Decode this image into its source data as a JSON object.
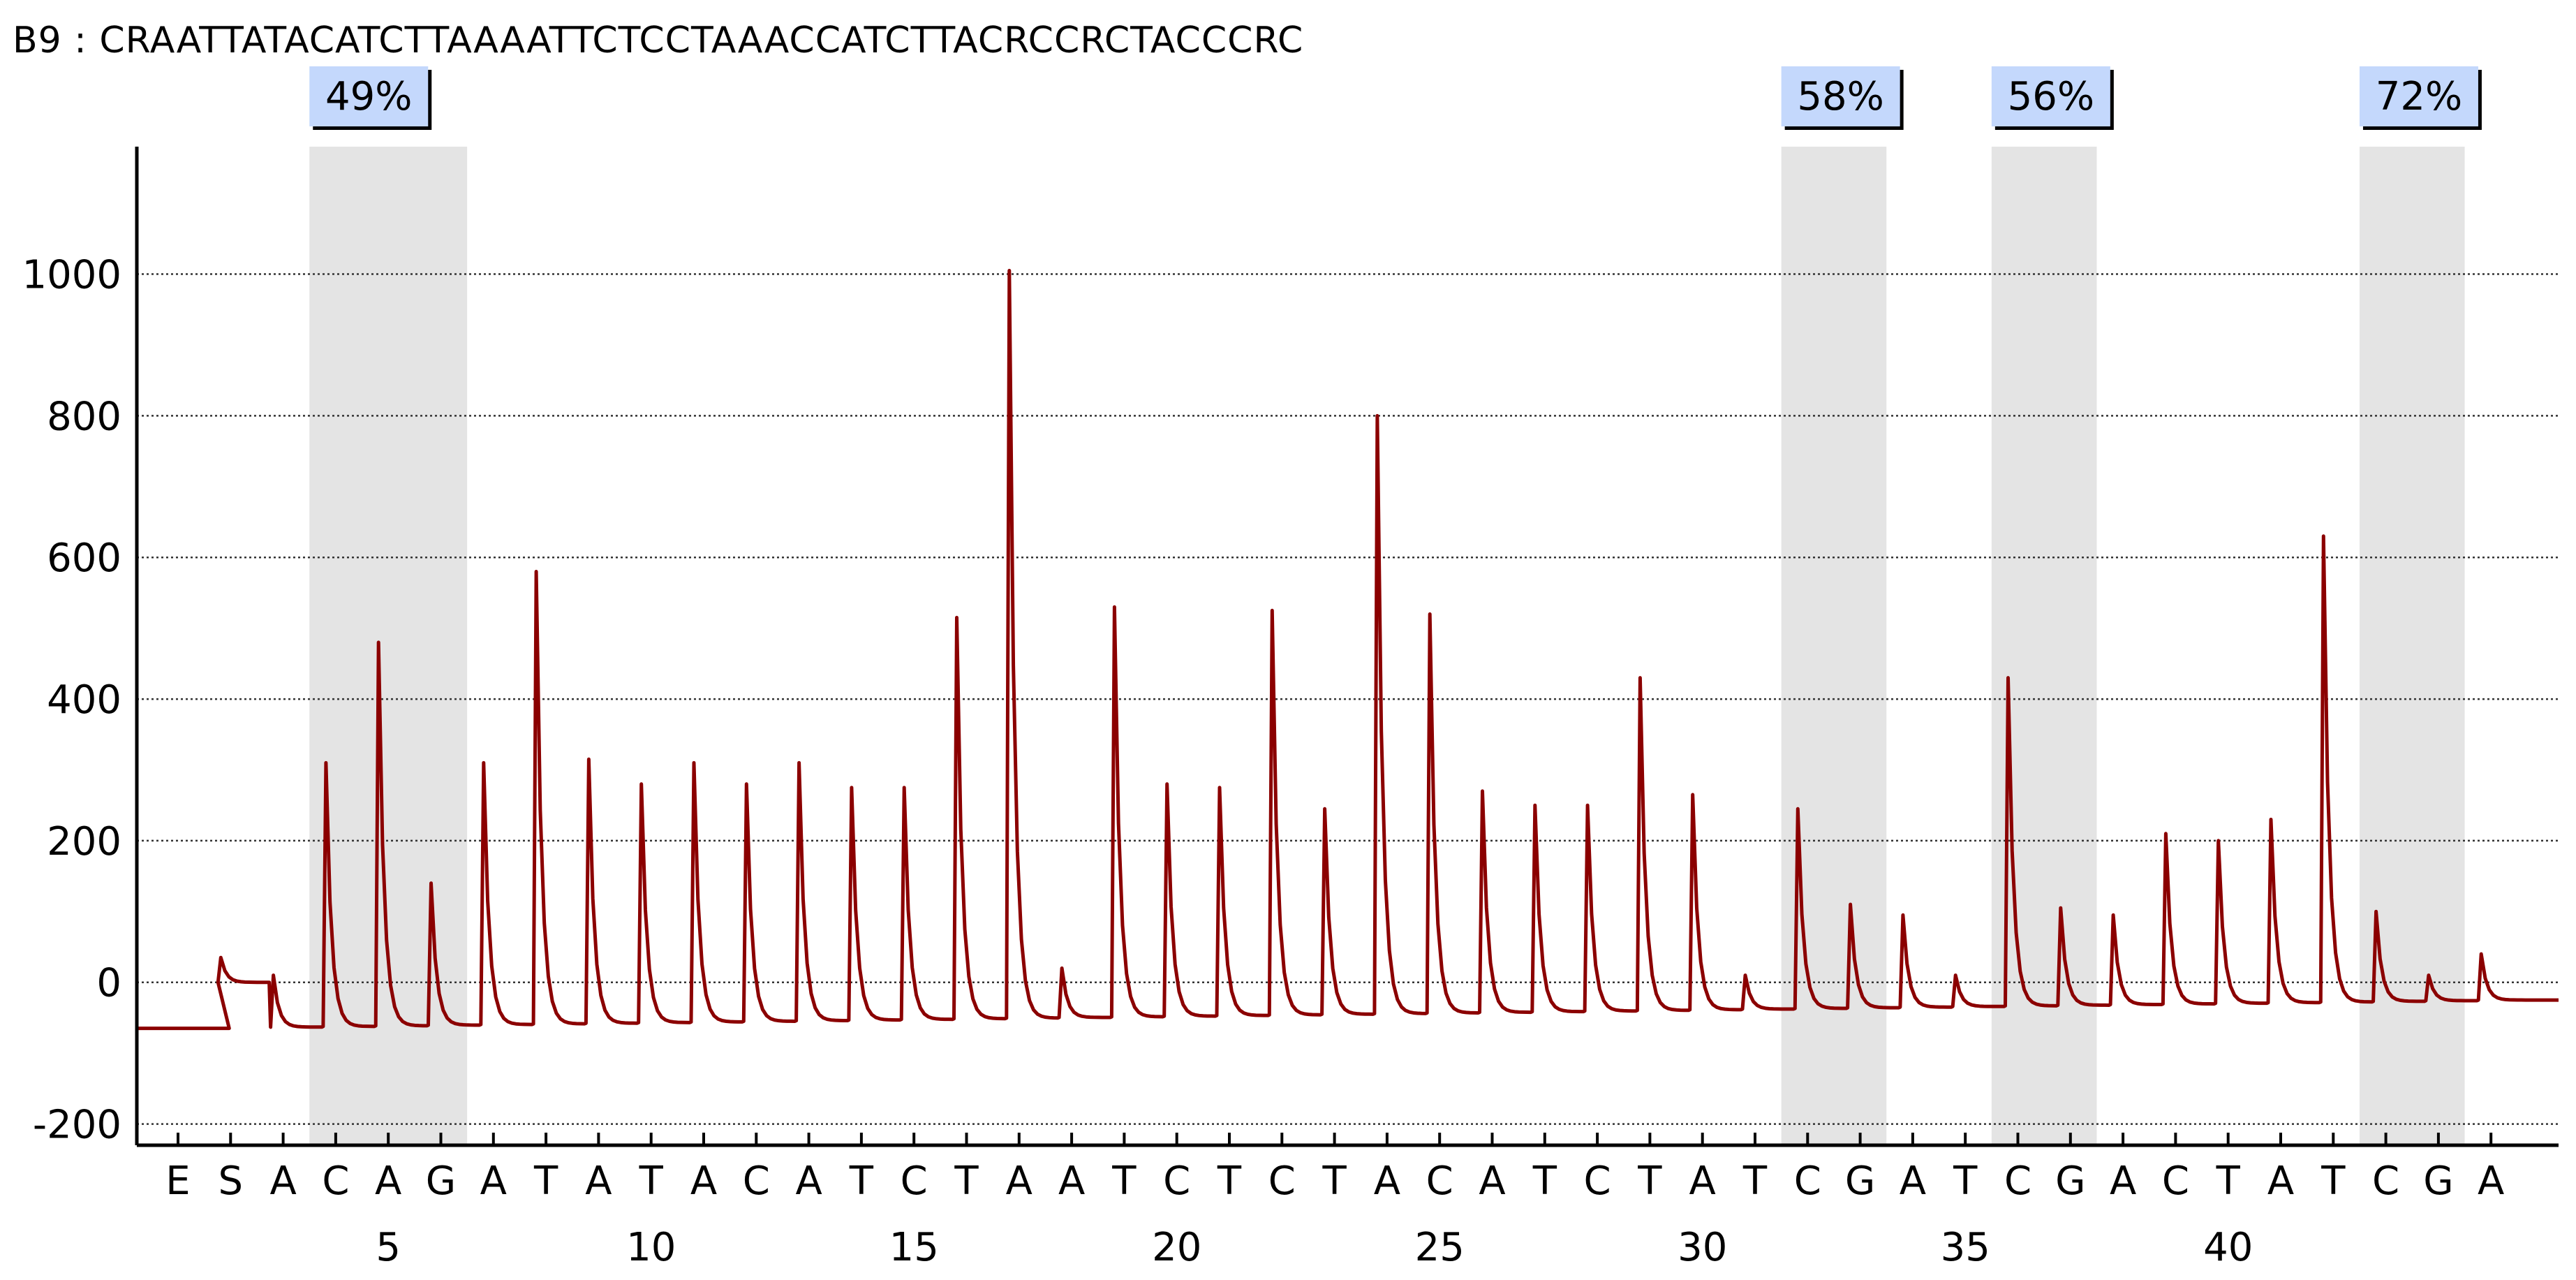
{
  "header": {
    "sample": "B9",
    "separator": ":",
    "sequence": "CRAATTATACATCTTAAAATTCTCCTAAACCATCTTACRCCRCTACCCRC"
  },
  "chart_data": {
    "type": "line",
    "ylim": [
      -230,
      1180
    ],
    "yticks": [
      -200,
      0,
      200,
      400,
      600,
      800,
      1000
    ],
    "xticks": [
      5,
      10,
      15,
      20,
      25,
      30,
      35,
      40
    ],
    "dispensation": [
      "E",
      "S",
      "A",
      "C",
      "A",
      "G",
      "A",
      "T",
      "A",
      "T",
      "A",
      "C",
      "A",
      "T",
      "C",
      "T",
      "A",
      "A",
      "T",
      "C",
      "T",
      "C",
      "T",
      "A",
      "C",
      "A",
      "T",
      "C",
      "T",
      "A",
      "T",
      "C",
      "G",
      "A",
      "T",
      "C",
      "G",
      "A",
      "C",
      "T",
      "A",
      "T",
      "C",
      "G",
      "A"
    ],
    "grid": true,
    "baseline_start": -65,
    "baseline_end": -25,
    "peaks": [
      0,
      35,
      10,
      310,
      480,
      140,
      310,
      580,
      315,
      280,
      310,
      280,
      310,
      275,
      275,
      515,
      1005,
      20,
      530,
      280,
      275,
      525,
      245,
      800,
      520,
      270,
      250,
      250,
      430,
      265,
      10,
      245,
      110,
      95,
      10,
      430,
      105,
      95,
      210,
      200,
      230,
      630,
      100,
      10,
      40
    ],
    "regions": [
      {
        "label": "49%",
        "from": 4,
        "to": 6
      },
      {
        "label": "58%",
        "from": 32,
        "to": 33
      },
      {
        "label": "56%",
        "from": 36,
        "to": 37
      },
      {
        "label": "72%",
        "from": 43,
        "to": 44
      }
    ],
    "colors": {
      "trace": "#8b0000",
      "region": "#e4e4e4",
      "label_box": "#c4d8fc"
    }
  }
}
